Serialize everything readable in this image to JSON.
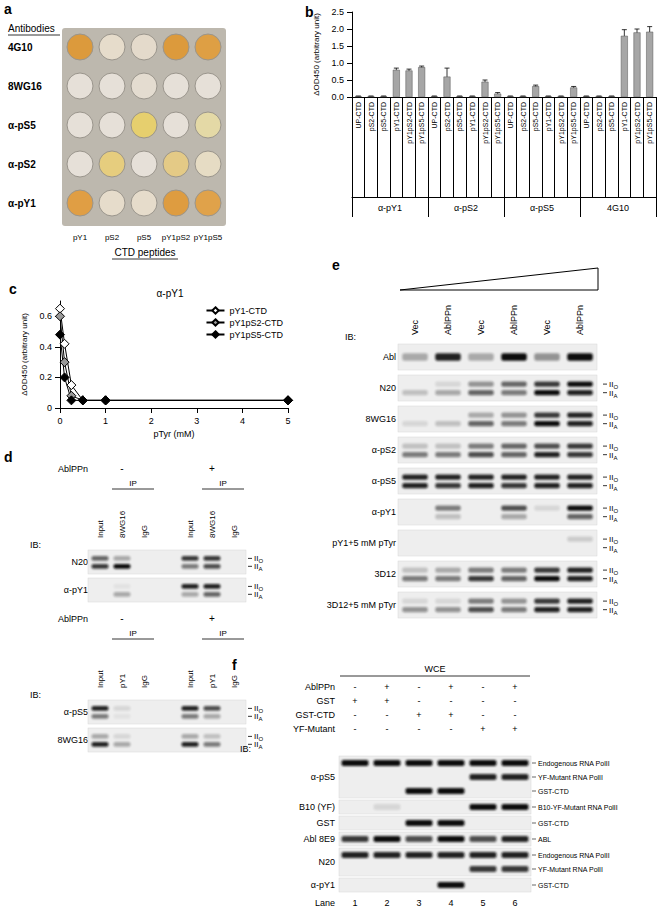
{
  "chart_data": [
    {
      "panel_label": "b",
      "type": "bar",
      "y_label": "ΔOD450 (arbitrary unit)",
      "categories": [
        "UP-CTD",
        "pS2-CTD",
        "pS5-CTD",
        "pY1-CTD",
        "pY1pS2-CTD",
        "pY1pS5-CTD",
        "UP-CTD",
        "pS2-CTD",
        "pS5-CTD",
        "pY1-CTD",
        "pY1pS2-CTD",
        "pY1pS5-CTD",
        "UP-CTD",
        "pS2-CTD",
        "pS5-CTD",
        "pY1-CTD",
        "pY1pS2-CTD",
        "pY1pS5-CTD",
        "UP-CTD",
        "pS2-CTD",
        "pS5-CTD",
        "pY1-CTD",
        "pY1pS2-CTD",
        "pY1pS5-CTD"
      ],
      "groups": [
        "α-pY1",
        "α-pS2",
        "α-pS5",
        "4G10"
      ],
      "values": [
        0.02,
        0.02,
        0.02,
        0.8,
        0.78,
        0.88,
        0.02,
        0.6,
        0.02,
        0.02,
        0.45,
        0.1,
        0.02,
        0.02,
        0.32,
        0.02,
        0.02,
        0.28,
        0.02,
        0.02,
        0.02,
        1.8,
        1.9,
        1.92
      ],
      "errors": [
        0.01,
        0.01,
        0.01,
        0.05,
        0.04,
        0.03,
        0.01,
        0.25,
        0.01,
        0.01,
        0.05,
        0.03,
        0.01,
        0.01,
        0.03,
        0.01,
        0.01,
        0.03,
        0.01,
        0.01,
        0.01,
        0.18,
        0.1,
        0.15
      ],
      "color": "#a6a6a6",
      "ylim": [
        0,
        2.5
      ],
      "yticks": [
        {
          "value": 0,
          "label": "0.0"
        },
        0.5,
        {
          "value": 1,
          "label": "1.0"
        },
        1.5,
        {
          "value": 2,
          "label": "2.0"
        },
        2.5
      ],
      "grid": false
    },
    {
      "panel_label": "c",
      "type": "line",
      "title": "α-pY1",
      "x_label": "pTyr (mM)",
      "y_label": "ΔOD450 (arbitrary unit)",
      "x": [
        0,
        0.1,
        0.25,
        0.5,
        1,
        5
      ],
      "series": [
        {
          "name": "pY1-CTD",
          "color": "#ffffff",
          "values": [
            0.65,
            0.42,
            0.15,
            0.05,
            0.05,
            0.05
          ]
        },
        {
          "name": "pY1pS2-CTD",
          "color": "#999999",
          "values": [
            0.6,
            0.3,
            0.08,
            0.05,
            0.05,
            0.05
          ]
        },
        {
          "name": "pY1pS5-CTD",
          "color": "#000000",
          "values": [
            0.48,
            0.2,
            0.05,
            0.05,
            0.05,
            0.05
          ]
        }
      ],
      "marker": "diamond",
      "line_style": "solid",
      "xlim": [
        0,
        5
      ],
      "xticks": [
        0,
        1,
        2,
        3,
        4,
        5
      ],
      "ylim": [
        0,
        0.7
      ],
      "yticks": [
        0,
        0.2,
        0.4,
        0.6
      ],
      "legend": "top-right",
      "grid": false
    }
  ],
  "panel_a": {
    "panel_label": "a",
    "heading": "Antibodies",
    "rows": [
      "4G10",
      "8WG16",
      "α-pS5",
      "α-pS2",
      "α-pY1"
    ],
    "columns": [
      "pY1",
      "pS2",
      "pS5",
      "pY1pS2",
      "pY1pS5"
    ],
    "column_title": "CTD peptides",
    "well_colors": [
      [
        "#dc9a3c",
        "#e6dccb",
        "#e4dacb",
        "#dc9a3c",
        "#de9f44"
      ],
      [
        "#e6e0d8",
        "#e6e0d8",
        "#e4dcd0",
        "#e6e0d8",
        "#e6e0d8"
      ],
      [
        "#e6e0d8",
        "#e6e0d8",
        "#e6cf6e",
        "#e6e0d8",
        "#e4d9a6"
      ],
      [
        "#e6e0d8",
        "#e6cd7e",
        "#e6e0d8",
        "#e4ca86",
        "#e6dcc4"
      ],
      [
        "#e09e44",
        "#e6dccb",
        "#e6dccb",
        "#de9c40",
        "#e0a24a"
      ]
    ]
  },
  "panel_d": {
    "panel_label": "d",
    "ib": "IB:",
    "markers": [
      {
        "text": "II",
        "sub": "O"
      },
      {
        "text": "II",
        "sub": "A"
      }
    ],
    "blots": [
      {
        "treatment": "AblPPn",
        "conditions": [
          "-",
          "+"
        ],
        "ip": "IP",
        "lanes": [
          "Input",
          "8WG16",
          "IgG",
          "Input",
          "8WG16",
          "IgG"
        ],
        "rows": [
          {
            "antibody": "N20",
            "bands": [
              [
                0.6,
                0.8
              ],
              [
                0.3,
                1
              ],
              [
                0,
                0
              ],
              [
                0.8,
                0.5
              ],
              [
                0.8,
                0.7
              ],
              [
                0,
                0
              ]
            ]
          },
          {
            "antibody": "α-pY1",
            "bands": [
              [
                0,
                0
              ],
              [
                0.05,
                0.3
              ],
              [
                0,
                0
              ],
              [
                0.9,
                0.3
              ],
              [
                0.9,
                0.6
              ],
              [
                0,
                0
              ]
            ]
          }
        ]
      },
      {
        "treatment": "AblPPn",
        "conditions": [
          "-",
          "+"
        ],
        "ip": "IP",
        "lanes": [
          "Input",
          "pY1",
          "IgG",
          "Input",
          "pY1",
          "IgG"
        ],
        "rows": [
          {
            "antibody": "α-pS5",
            "bands": [
              [
                0.9,
                0.5
              ],
              [
                0.1,
                0.05
              ],
              [
                0,
                0
              ],
              [
                0.9,
                0.5
              ],
              [
                0.7,
                0.3
              ],
              [
                0,
                0
              ]
            ]
          },
          {
            "antibody": "8WG16",
            "bands": [
              [
                0.3,
                0.9
              ],
              [
                0.1,
                0.3
              ],
              [
                0,
                0
              ],
              [
                0.3,
                0.9
              ],
              [
                0.2,
                0.5
              ],
              [
                0,
                0
              ]
            ]
          }
        ]
      }
    ]
  },
  "panel_e": {
    "panel_label": "e",
    "ib": "IB:",
    "lanes": [
      "Vec",
      "AblPPn",
      "Vec",
      "AblPPn",
      "Vec",
      "AblPPn"
    ],
    "markers": [
      {
        "text": "II",
        "sub": "O"
      },
      {
        "text": "II",
        "sub": "A"
      }
    ],
    "rows": [
      {
        "antibody": "Abl",
        "marked": false,
        "bands": [
          0.3,
          0.9,
          0.3,
          1,
          0.4,
          1
        ]
      },
      {
        "antibody": "N20",
        "marked": true,
        "bands": [
          [
            0,
            0.2
          ],
          [
            0.1,
            0.3
          ],
          [
            0.4,
            0.6
          ],
          [
            0.6,
            0.5
          ],
          [
            0.8,
            1
          ],
          [
            1,
            0.9
          ]
        ]
      },
      {
        "antibody": "8WG16",
        "marked": true,
        "bands": [
          [
            0,
            0.1
          ],
          [
            0,
            0.2
          ],
          [
            0.3,
            0.6
          ],
          [
            0.4,
            0.5
          ],
          [
            0.8,
            1
          ],
          [
            0.9,
            0.9
          ]
        ]
      },
      {
        "antibody": "α-pS2",
        "marked": true,
        "bands": [
          [
            0.2,
            0.5
          ],
          [
            0.2,
            0.5
          ],
          [
            0.5,
            0.7
          ],
          [
            0.6,
            0.6
          ],
          [
            0.7,
            0.9
          ],
          [
            0.8,
            0.8
          ]
        ]
      },
      {
        "antibody": "α-pS5",
        "marked": true,
        "bands": [
          [
            0.9,
            0.9
          ],
          [
            0.9,
            0.8
          ],
          [
            0.9,
            0.9
          ],
          [
            0.9,
            0.8
          ],
          [
            0.9,
            0.9
          ],
          [
            0.9,
            0.9
          ]
        ]
      },
      {
        "antibody": "α-pY1",
        "marked": true,
        "bands": [
          [
            0,
            0
          ],
          [
            0.5,
            0.2
          ],
          [
            0,
            0
          ],
          [
            0.7,
            0.3
          ],
          [
            0.1,
            0
          ],
          [
            1,
            0.6
          ]
        ]
      },
      {
        "antibody": "pY1+5 mM pTyr",
        "marked": true,
        "bands": [
          [
            0,
            0
          ],
          [
            0,
            0
          ],
          [
            0,
            0
          ],
          [
            0,
            0
          ],
          [
            0,
            0
          ],
          [
            0.15,
            0
          ]
        ]
      },
      {
        "antibody": "3D12",
        "marked": true,
        "bands": [
          [
            0.2,
            0.5
          ],
          [
            0.3,
            0.5
          ],
          [
            0.5,
            0.8
          ],
          [
            0.5,
            0.6
          ],
          [
            0.8,
            1
          ],
          [
            0.9,
            0.9
          ]
        ]
      },
      {
        "antibody": "3D12+5 mM pTyr",
        "marked": true,
        "bands": [
          [
            0.1,
            0.4
          ],
          [
            0.1,
            0.4
          ],
          [
            0.5,
            0.7
          ],
          [
            0.4,
            0.5
          ],
          [
            0.8,
            0.9
          ],
          [
            0.9,
            0.9
          ]
        ]
      }
    ]
  },
  "panel_f": {
    "panel_label": "f",
    "header": "WCE",
    "ib": "IB:",
    "conditions": [
      {
        "name": "AblPPn",
        "marks": [
          "-",
          "+",
          "-",
          "+",
          "-",
          "+"
        ]
      },
      {
        "name": "GST",
        "marks": [
          "+",
          "+",
          "-",
          "-",
          "-",
          "-"
        ]
      },
      {
        "name": "GST-CTD",
        "marks": [
          "-",
          "-",
          "+",
          "+",
          "-",
          "-"
        ]
      },
      {
        "name": "YF-Mutant",
        "marks": [
          "-",
          "-",
          "-",
          "-",
          "+",
          "+"
        ]
      }
    ],
    "rows": [
      {
        "antibody": "α-pS5",
        "species": [
          {
            "label": "Endogenous RNA PolII",
            "bands": [
              1,
              1,
              1,
              1,
              1,
              1
            ]
          },
          {
            "label": "YF-Mutant RNA PolII",
            "bands": [
              0,
              0,
              0,
              0,
              0.9,
              0.9
            ]
          },
          {
            "label": "GST-CTD",
            "bands": [
              0,
              0,
              1,
              1,
              0,
              0
            ]
          }
        ]
      },
      {
        "antibody": "B10 (YF)",
        "species": [
          {
            "label": "B10-YF-Mutant RNA PolII",
            "bands": [
              0,
              0.1,
              0,
              0,
              1,
              1
            ]
          }
        ]
      },
      {
        "antibody": "GST",
        "species": [
          {
            "label": "GST-CTD",
            "bands": [
              0,
              0,
              1,
              1,
              0,
              0
            ]
          }
        ]
      },
      {
        "antibody": "Abl 8E9",
        "species": [
          {
            "label": "ABL",
            "bands": [
              0.8,
              1,
              0.7,
              1,
              0.7,
              0.9
            ]
          }
        ]
      },
      {
        "antibody": "N20",
        "species": [
          {
            "label": "Endogenous RNA PolII",
            "bands": [
              0.9,
              0.9,
              0.9,
              0.9,
              0.9,
              0.9
            ]
          },
          {
            "label": "YF-Mutant RNA PolII",
            "bands": [
              0,
              0,
              0,
              0,
              0.8,
              0.8
            ]
          }
        ]
      },
      {
        "antibody": "α-pY1",
        "species": [
          {
            "label": "GST-CTD",
            "bands": [
              0,
              0,
              0,
              1,
              0,
              0
            ]
          }
        ]
      }
    ],
    "lane_title": "Lane",
    "lane_numbers": [
      1,
      2,
      3,
      4,
      5,
      6
    ]
  }
}
